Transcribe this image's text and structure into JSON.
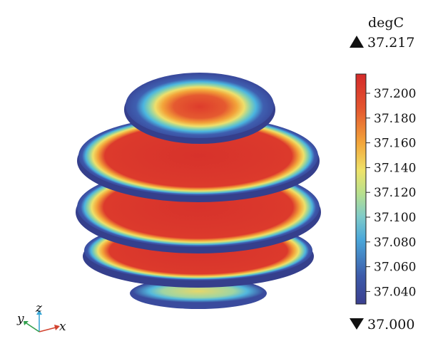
{
  "legend": {
    "unit": "degC",
    "max_label": "37.217",
    "min_label": "37.000",
    "ticks": [
      "37.200",
      "37.180",
      "37.160",
      "37.140",
      "37.120",
      "37.100",
      "37.080",
      "37.060",
      "37.040"
    ]
  },
  "axes": {
    "x_label": "x",
    "y_label": "y",
    "z_label": "z"
  },
  "colors": {
    "hot": "#d9302a",
    "warm": "#f0b23c",
    "mid": "#a9d68c",
    "cool": "#5fc3dc",
    "cold": "#3b4a9c",
    "x_axis": "#d2432f",
    "y_axis": "#2e9e4a",
    "z_axis": "#3aa7d6"
  }
}
